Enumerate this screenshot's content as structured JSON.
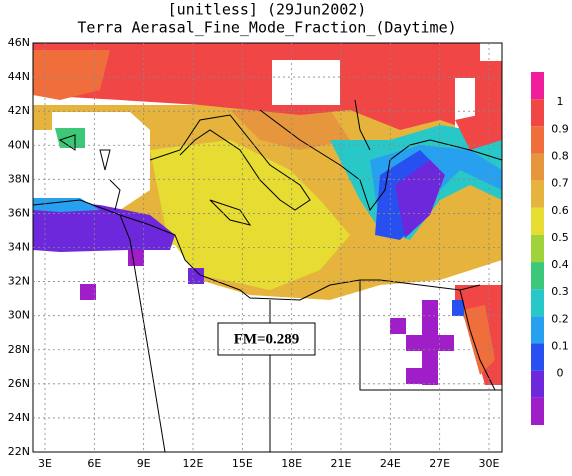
{
  "title_lines": [
    "[unitless] (29Jun2002)",
    "Terra Aerasal_Fine_Mode_Fraction_(Daytime)"
  ],
  "lat_labels": [
    "46N",
    "44N",
    "42N",
    "40N",
    "38N",
    "36N",
    "34N",
    "32N",
    "30N",
    "28N",
    "26N",
    "24N",
    "22N"
  ],
  "lon_labels": [
    "3E",
    "6E",
    "9E",
    "12E",
    "15E",
    "18E",
    "21E",
    "24E",
    "27E",
    "30E"
  ],
  "annotation": "FM=0.289",
  "colorbar": {
    "labels": [
      "1",
      "0.9",
      "0.8",
      "0.7",
      "0.6",
      "0.5",
      "0.4",
      "0.3",
      "0.2",
      "0.1",
      "0"
    ],
    "colors": [
      "#f01e9a",
      "#f04646",
      "#f06e3c",
      "#e6963c",
      "#e6b43c",
      "#e6dc32",
      "#a0d23c",
      "#3cc878",
      "#28c8c8",
      "#28a0f0",
      "#2850f0",
      "#6e28dc",
      "#a01ec8"
    ]
  }
}
